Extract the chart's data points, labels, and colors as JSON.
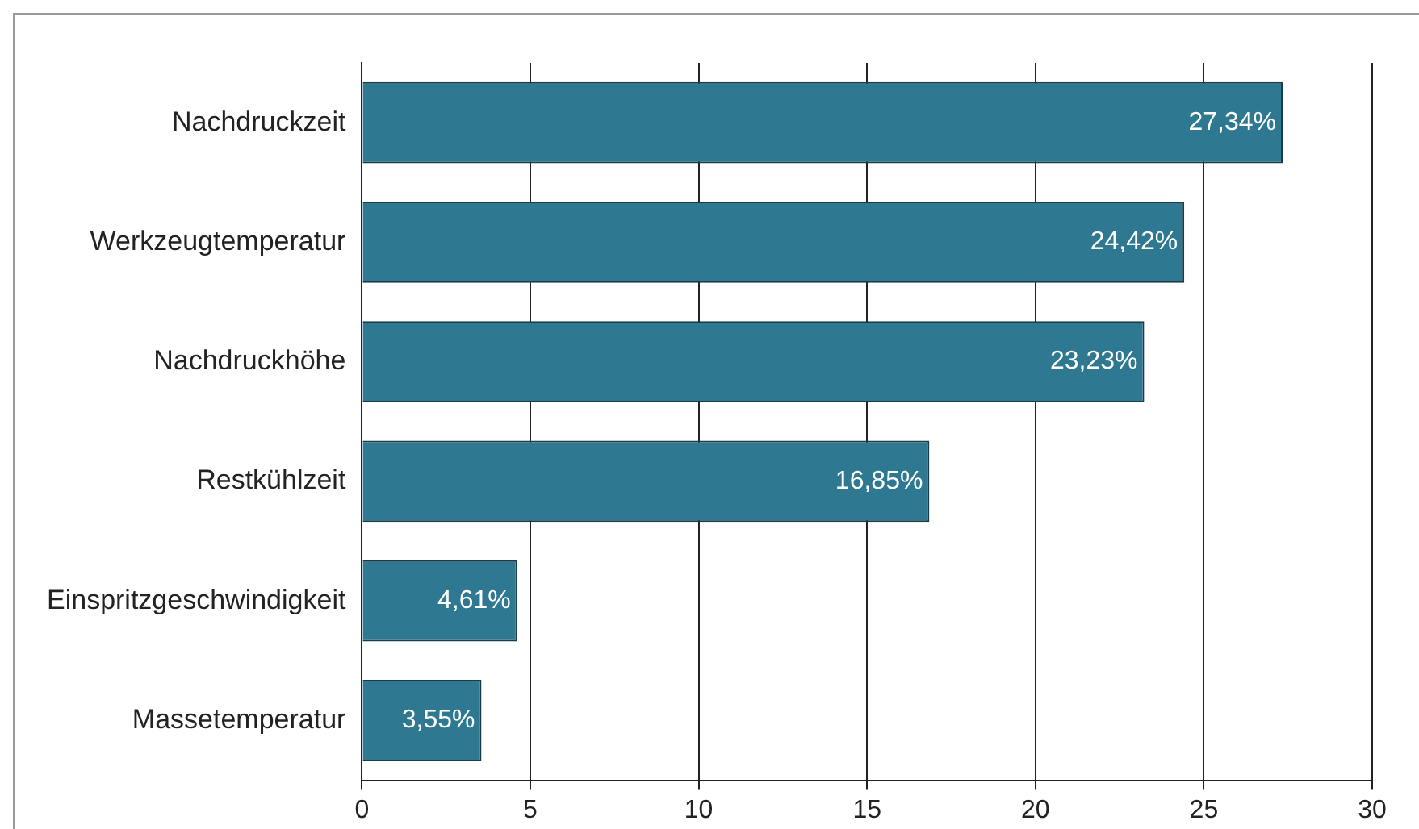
{
  "chart_data": {
    "type": "bar",
    "orientation": "horizontal",
    "categories": [
      "Nachdruckzeit",
      "Werkzeugtemperatur",
      "Nachdruckhöhe",
      "Restkühlzeit",
      "Einspritzgeschwindigkeit",
      "Massetemperatur"
    ],
    "values": [
      27.34,
      24.42,
      23.23,
      16.85,
      4.61,
      3.55
    ],
    "value_labels": [
      "27,34%",
      "24,42%",
      "23,23%",
      "16,85%",
      "4,61%",
      "3,55%"
    ],
    "color": "#2e7891",
    "xlim": [
      0,
      30
    ],
    "xticks": [
      0,
      5,
      10,
      15,
      20,
      25,
      30
    ],
    "grid": "x",
    "legend": false
  }
}
